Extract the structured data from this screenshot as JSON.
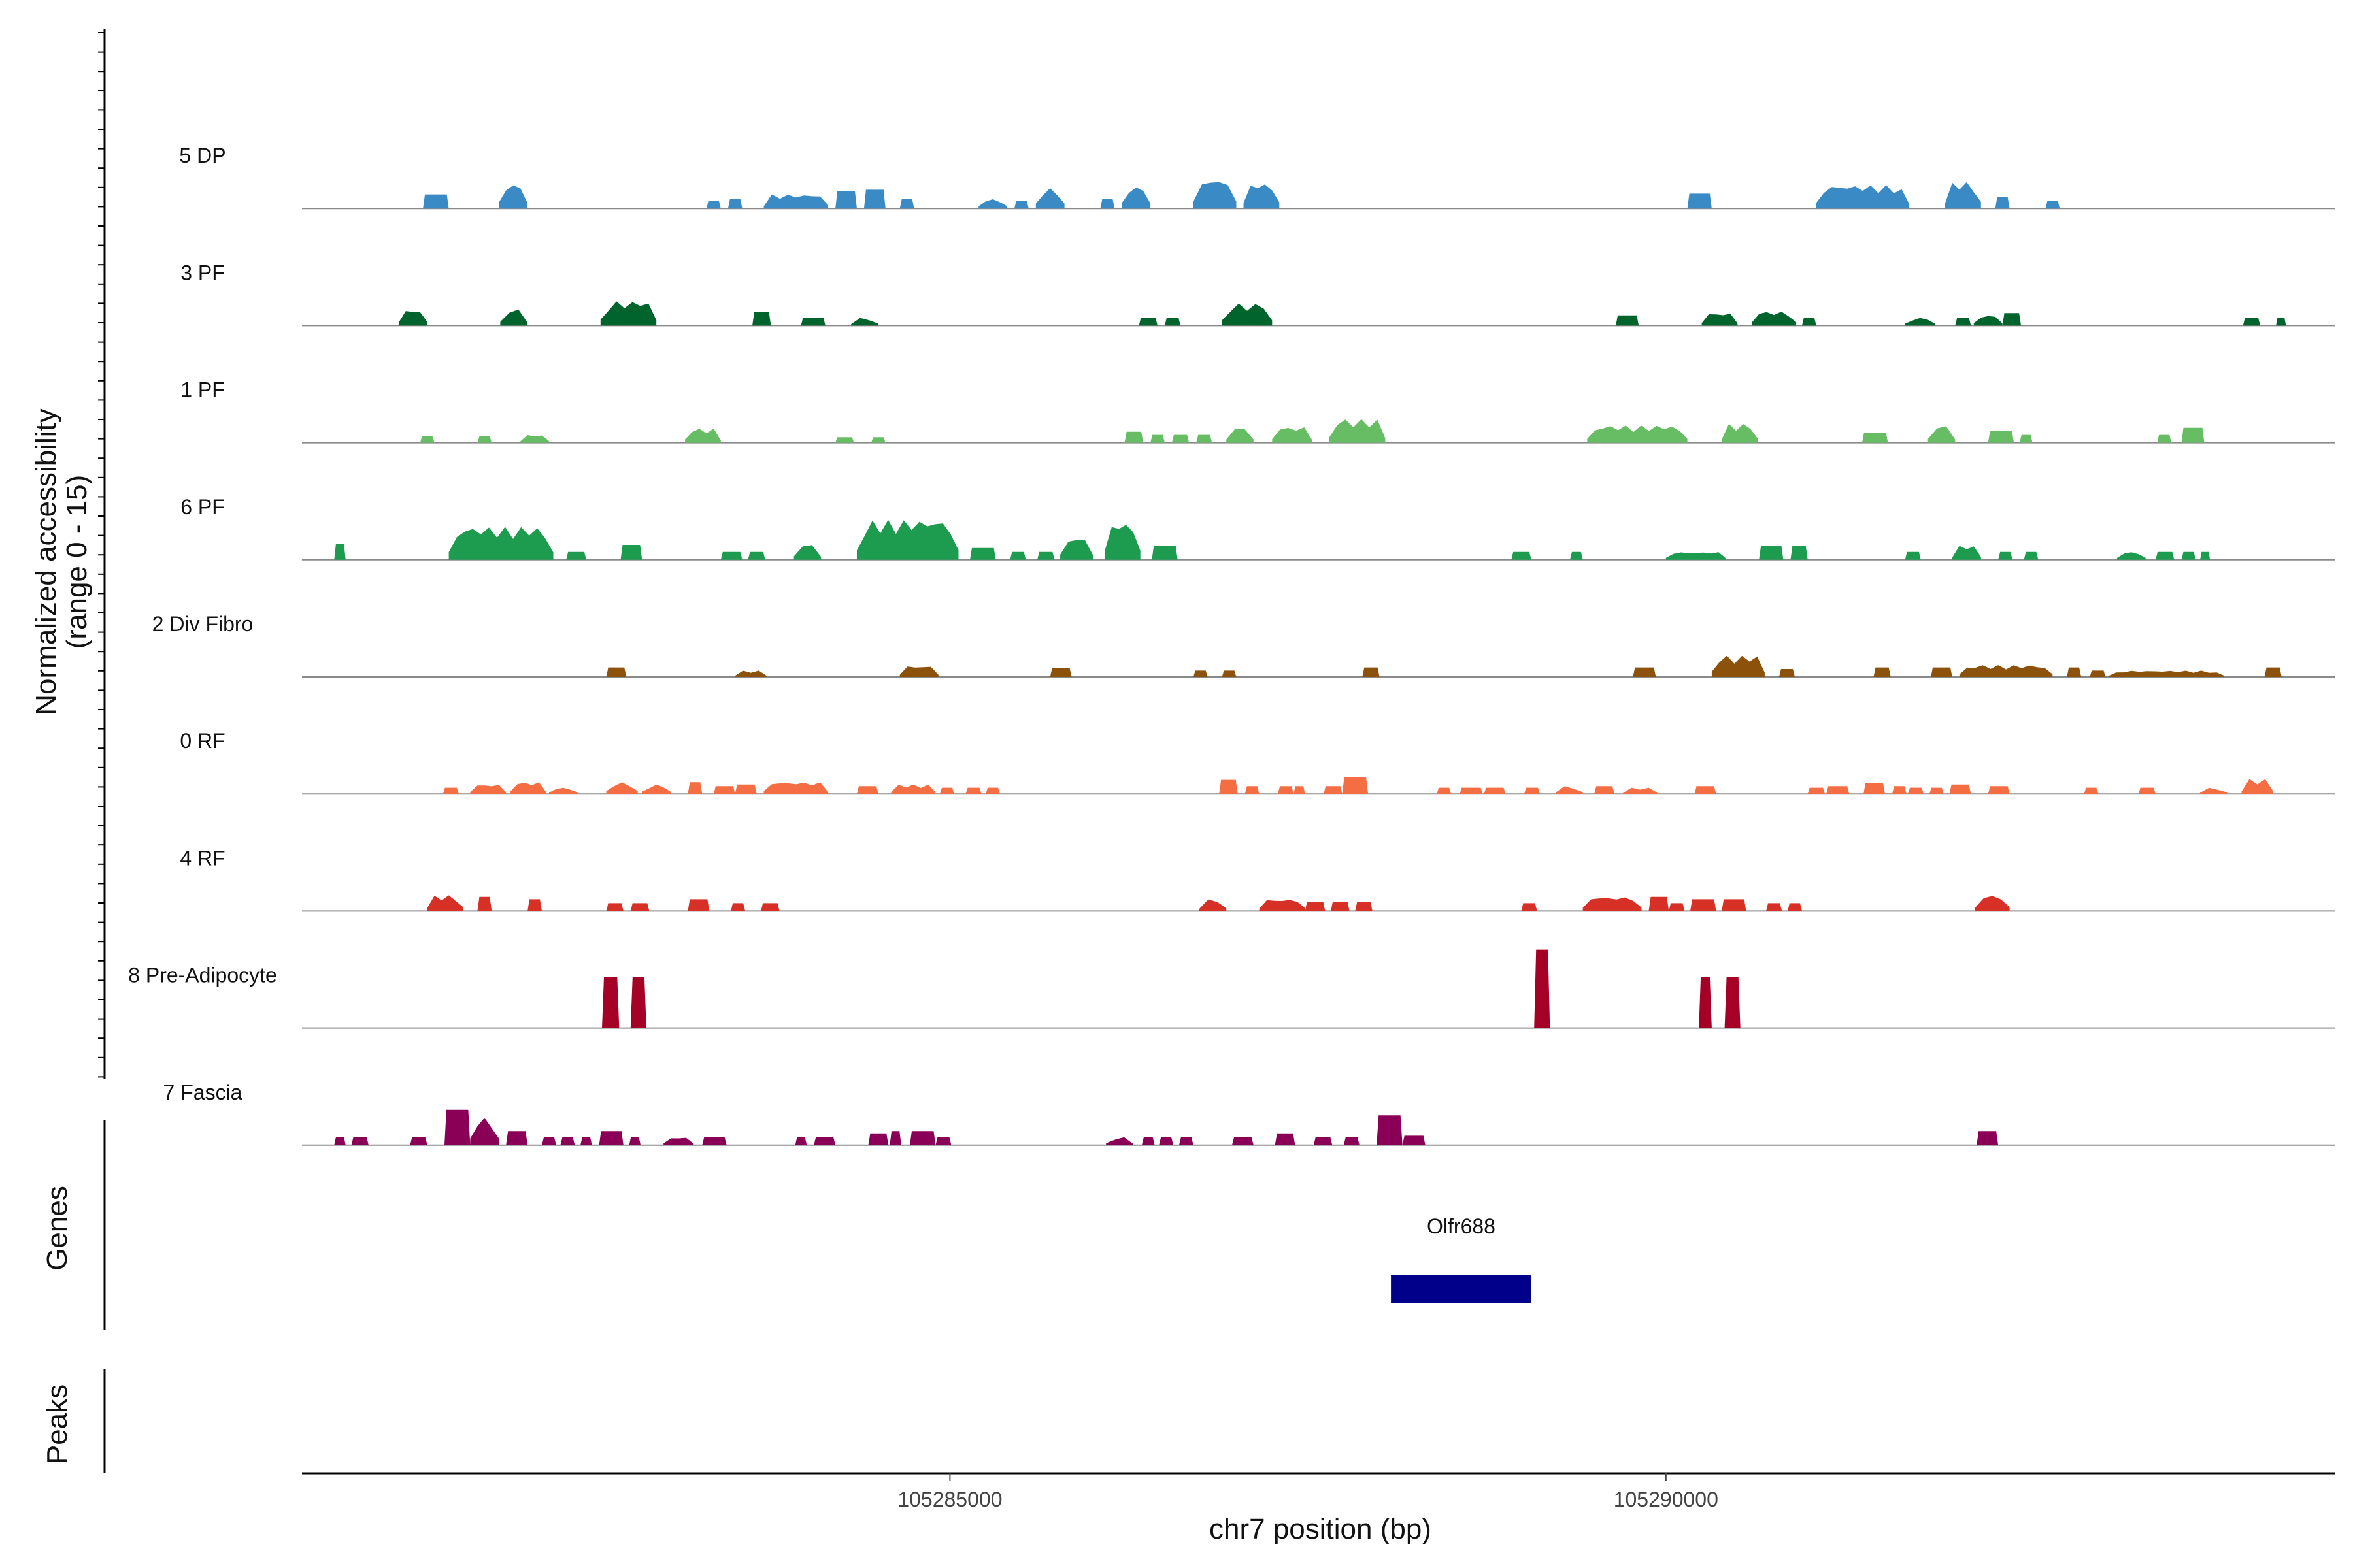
{
  "chart_data": {
    "type": "area",
    "title": "",
    "xlabel": "chr7 position (bp)",
    "ylabel": "Normalized accessibility",
    "ylabel_range": "(range 0 - 15)",
    "ylim": [
      0,
      15
    ],
    "xlim": [
      105280475,
      105294675
    ],
    "x_ticks": [
      105285000,
      105290000
    ],
    "x_tick_labels": [
      "105285000",
      "105290000"
    ],
    "genes_track_title": "Genes",
    "peaks_track_title": "Peaks",
    "genes": [
      {
        "name": "Olfr688",
        "start": 105288080,
        "end": 105289060,
        "color": "#00008b"
      }
    ],
    "series": [
      {
        "name": "5 DP",
        "color": "#3a8bc5",
        "regions": [
          [
            105281320,
            105281500,
            1.8
          ],
          [
            105281850,
            105282050,
            3.1
          ],
          [
            105283300,
            105283400,
            1.0
          ],
          [
            105283450,
            105283550,
            1.2
          ],
          [
            105283700,
            105284150,
            1.8
          ],
          [
            105284200,
            105284350,
            2.2
          ],
          [
            105284400,
            105284550,
            2.4
          ],
          [
            105284650,
            105284750,
            1.2
          ],
          [
            105285200,
            105285400,
            1.2
          ],
          [
            105285450,
            105285550,
            1.0
          ],
          [
            105285600,
            105285800,
            2.6
          ],
          [
            105286050,
            105286150,
            1.2
          ],
          [
            105286200,
            105286400,
            2.8
          ],
          [
            105286700,
            105287000,
            3.7
          ],
          [
            105287050,
            105287300,
            3.2
          ],
          [
            105290150,
            105290320,
            1.9
          ],
          [
            105291050,
            105291700,
            3.0
          ],
          [
            105291950,
            105292200,
            3.4
          ],
          [
            105292300,
            105292400,
            1.5
          ],
          [
            105292650,
            105292750,
            1.0
          ]
        ]
      },
      {
        "name": "3 PF",
        "color": "#00642c",
        "regions": [
          [
            105281150,
            105281350,
            2.0
          ],
          [
            105281860,
            105282050,
            2.1
          ],
          [
            105282560,
            105282950,
            3.1
          ],
          [
            105283620,
            105283750,
            1.7
          ],
          [
            105283960,
            105284130,
            1.0
          ],
          [
            105284310,
            105284500,
            1.0
          ],
          [
            105286320,
            105286450,
            1.0
          ],
          [
            105286500,
            105286610,
            1.0
          ],
          [
            105286900,
            105287250,
            2.8
          ],
          [
            105289650,
            105289810,
            1.3
          ],
          [
            105290250,
            105290500,
            1.6
          ],
          [
            105290600,
            105290910,
            1.8
          ],
          [
            105290950,
            105291050,
            1.0
          ],
          [
            105291670,
            105291880,
            1.0
          ],
          [
            105292020,
            105292130,
            1.0
          ],
          [
            105292150,
            105292350,
            1.3
          ],
          [
            105292350,
            105292480,
            1.6
          ],
          [
            105294030,
            105294150,
            1.0
          ],
          [
            105294260,
            105294330,
            1.0
          ]
        ]
      },
      {
        "name": "1 PF",
        "color": "#66bd63",
        "regions": [
          [
            105281300,
            105281400,
            0.8
          ],
          [
            105281700,
            105281800,
            0.8
          ],
          [
            105282000,
            105282200,
            1.0
          ],
          [
            105283150,
            105283400,
            1.8
          ],
          [
            105284200,
            105284330,
            0.7
          ],
          [
            105284450,
            105284550,
            0.7
          ],
          [
            105286220,
            105286350,
            1.4
          ],
          [
            105286400,
            105286500,
            1.0
          ],
          [
            105286550,
            105286670,
            1.0
          ],
          [
            105286720,
            105286830,
            1.0
          ],
          [
            105286930,
            105287120,
            2.0
          ],
          [
            105287250,
            105287530,
            2.0
          ],
          [
            105287650,
            105288040,
            3.0
          ],
          [
            105289450,
            105290150,
            2.2
          ],
          [
            105290390,
            105290640,
            2.4
          ],
          [
            105291370,
            105291550,
            1.3
          ],
          [
            105291830,
            105292020,
            2.2
          ],
          [
            105292250,
            105292430,
            1.5
          ],
          [
            105292470,
            105292560,
            1.0
          ],
          [
            105293430,
            105293530,
            1.0
          ],
          [
            105293600,
            105293760,
            1.9
          ]
        ]
      },
      {
        "name": "6 PF",
        "color": "#1d9b4f",
        "regions": [
          [
            105280700,
            105280780,
            2.0
          ],
          [
            105281500,
            105282230,
            4.2
          ],
          [
            105282320,
            105282460,
            1.0
          ],
          [
            105282700,
            105282850,
            1.9
          ],
          [
            105283400,
            105283550,
            1.0
          ],
          [
            105283590,
            105283710,
            1.0
          ],
          [
            105283910,
            105284100,
            2.0
          ],
          [
            105284350,
            105285060,
            5.1
          ],
          [
            105285140,
            105285320,
            1.5
          ],
          [
            105285420,
            105285530,
            1.0
          ],
          [
            105285610,
            105285730,
            1.0
          ],
          [
            105285770,
            105286000,
            2.8
          ],
          [
            105286080,
            105286330,
            4.7
          ],
          [
            105286410,
            105286590,
            1.8
          ],
          [
            105288920,
            105289060,
            1.0
          ],
          [
            105289330,
            105289420,
            1.0
          ],
          [
            105290000,
            105290420,
            1.0
          ],
          [
            105290650,
            105290820,
            1.8
          ],
          [
            105290870,
            105290990,
            1.8
          ],
          [
            105291670,
            105291780,
            1.0
          ],
          [
            105292000,
            105292200,
            1.8
          ],
          [
            105292320,
            105292420,
            1.0
          ],
          [
            105292500,
            105292600,
            1.0
          ],
          [
            105293150,
            105293350,
            1.0
          ],
          [
            105293420,
            105293550,
            1.0
          ],
          [
            105293600,
            105293700,
            1.0
          ],
          [
            105293730,
            105293800,
            1.0
          ]
        ]
      },
      {
        "name": "2 Div Fibro",
        "color": "#8c510a",
        "regions": [
          [
            105282600,
            105282740,
            1.2
          ],
          [
            105283500,
            105283720,
            0.8
          ],
          [
            105284650,
            105284920,
            1.4
          ],
          [
            105285700,
            105285850,
            1.1
          ],
          [
            105286700,
            105286800,
            0.8
          ],
          [
            105286900,
            105287000,
            0.8
          ],
          [
            105287880,
            105288000,
            1.2
          ],
          [
            105289770,
            105289930,
            1.2
          ],
          [
            105290320,
            105290690,
            2.7
          ],
          [
            105290790,
            105290900,
            1.0
          ],
          [
            105291450,
            105291570,
            1.2
          ],
          [
            105291850,
            105292000,
            1.2
          ],
          [
            105292050,
            105292700,
            1.5
          ],
          [
            105292800,
            105292900,
            1.2
          ],
          [
            105292960,
            105293070,
            0.8
          ],
          [
            105293090,
            105293900,
            0.8
          ],
          [
            105294180,
            105294300,
            1.2
          ]
        ]
      },
      {
        "name": "0 RF",
        "color": "#f46d43",
        "regions": [
          [
            105281460,
            105281570,
            0.8
          ],
          [
            105281650,
            105281900,
            1.2
          ],
          [
            105281930,
            105282180,
            1.5
          ],
          [
            105282200,
            105282400,
            0.8
          ],
          [
            105282600,
            105282820,
            1.5
          ],
          [
            105282850,
            105283050,
            1.2
          ],
          [
            105283170,
            105283270,
            1.5
          ],
          [
            105283350,
            105283500,
            1.0
          ],
          [
            105283500,
            105283650,
            1.2
          ],
          [
            105283700,
            105284150,
            1.5
          ],
          [
            105284350,
            105284500,
            1.0
          ],
          [
            105284590,
            105284900,
            1.2
          ],
          [
            105284930,
            105285030,
            0.8
          ],
          [
            105285110,
            105285220,
            0.8
          ],
          [
            105285250,
            105285350,
            0.8
          ],
          [
            105286880,
            105287010,
            1.8
          ],
          [
            105287060,
            105287160,
            1.0
          ],
          [
            105287290,
            105287400,
            1.0
          ],
          [
            105287400,
            105287480,
            1.0
          ],
          [
            105287610,
            105287740,
            1.0
          ],
          [
            105287740,
            105287920,
            2.1
          ],
          [
            105288400,
            105288500,
            0.8
          ],
          [
            105288560,
            105288720,
            0.8
          ],
          [
            105288730,
            105288880,
            0.8
          ],
          [
            105289010,
            105289120,
            0.8
          ],
          [
            105289230,
            105289420,
            1.0
          ],
          [
            105289500,
            105289640,
            1.0
          ],
          [
            105289700,
            105289940,
            0.8
          ],
          [
            105290200,
            105290350,
            1.0
          ],
          [
            105290990,
            105291110,
            0.8
          ],
          [
            105291120,
            105291280,
            1.0
          ],
          [
            105291380,
            105291530,
            1.4
          ],
          [
            105291580,
            105291680,
            1.0
          ],
          [
            105291690,
            105291800,
            0.8
          ],
          [
            105291840,
            105291940,
            0.8
          ],
          [
            105291980,
            105292130,
            1.2
          ],
          [
            105292250,
            105292400,
            1.0
          ],
          [
            105292920,
            105293020,
            0.8
          ],
          [
            105293300,
            105293420,
            0.8
          ],
          [
            105293730,
            105293920,
            0.8
          ],
          [
            105294020,
            105294240,
            1.9
          ]
        ]
      },
      {
        "name": "4 RF",
        "color": "#d73027",
        "regions": [
          [
            105281350,
            105281600,
            2.0
          ],
          [
            105281700,
            105281800,
            1.8
          ],
          [
            105282050,
            105282150,
            1.5
          ],
          [
            105282600,
            105282720,
            1.0
          ],
          [
            105282770,
            105282900,
            1.0
          ],
          [
            105283170,
            105283320,
            1.5
          ],
          [
            105283470,
            105283570,
            1.0
          ],
          [
            105283680,
            105283810,
            1.0
          ],
          [
            105286740,
            105286930,
            1.5
          ],
          [
            105287160,
            105287480,
            1.5
          ],
          [
            105287480,
            105287620,
            1.2
          ],
          [
            105287660,
            105287790,
            1.2
          ],
          [
            105287830,
            105287950,
            1.2
          ],
          [
            105288990,
            105289100,
            1.0
          ],
          [
            105289420,
            105289830,
            1.8
          ],
          [
            105289880,
            105290020,
            1.8
          ],
          [
            105290020,
            105290130,
            1.0
          ],
          [
            105290170,
            105290350,
            1.5
          ],
          [
            105290390,
            105290560,
            1.5
          ],
          [
            105290700,
            105290810,
            1.0
          ],
          [
            105290850,
            105290950,
            1.0
          ],
          [
            105292160,
            105292400,
            2.0
          ]
        ]
      },
      {
        "name": "8 Pre-Adipocyte",
        "color": "#a50026",
        "regions": [
          [
            105282570,
            105282690,
            6.5
          ],
          [
            105282770,
            105282880,
            6.5
          ],
          [
            105289080,
            105289190,
            10.0
          ],
          [
            105290230,
            105290320,
            6.5
          ],
          [
            105290410,
            105290520,
            6.5
          ]
        ]
      },
      {
        "name": "7 Fascia",
        "color": "#8b0057",
        "regions": [
          [
            105280700,
            105280780,
            1.0
          ],
          [
            105280820,
            105280940,
            1.0
          ],
          [
            105281230,
            105281350,
            1.0
          ],
          [
            105281470,
            105281650,
            4.5
          ],
          [
            105281650,
            105281850,
            3.5
          ],
          [
            105281900,
            105282050,
            1.8
          ],
          [
            105282150,
            105282250,
            1.0
          ],
          [
            105282280,
            105282380,
            1.0
          ],
          [
            105282420,
            105282500,
            1.0
          ],
          [
            105282550,
            105282720,
            1.8
          ],
          [
            105282760,
            105282840,
            1.0
          ],
          [
            105283000,
            105283210,
            1.0
          ],
          [
            105283270,
            105283440,
            1.0
          ],
          [
            105283920,
            105284000,
            1.0
          ],
          [
            105284050,
            105284200,
            1.0
          ],
          [
            105284430,
            105284570,
            1.5
          ],
          [
            105284580,
            105284660,
            1.8
          ],
          [
            105284720,
            105284900,
            1.8
          ],
          [
            105284900,
            105285010,
            1.0
          ],
          [
            105286090,
            105286280,
            1.0
          ],
          [
            105286340,
            105286430,
            1.0
          ],
          [
            105286460,
            105286560,
            1.0
          ],
          [
            105286600,
            105286700,
            1.0
          ],
          [
            105286970,
            105287120,
            1.0
          ],
          [
            105287270,
            105287410,
            1.5
          ],
          [
            105287540,
            105287670,
            1.0
          ],
          [
            105287750,
            105287860,
            1.0
          ],
          [
            105287980,
            105288160,
            3.8
          ],
          [
            105288160,
            105288320,
            1.2
          ],
          [
            105292170,
            105292320,
            1.8
          ]
        ]
      }
    ]
  }
}
